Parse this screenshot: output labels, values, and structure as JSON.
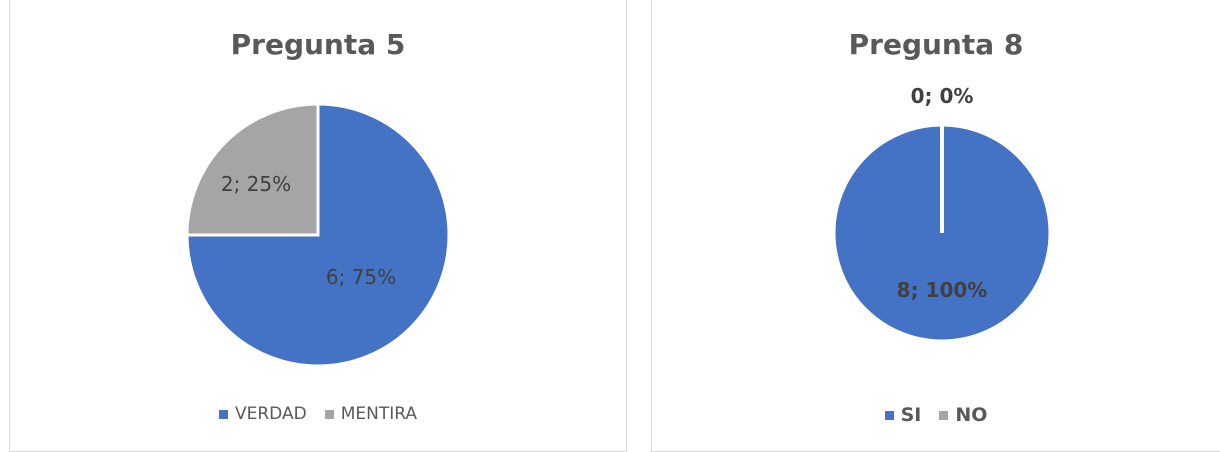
{
  "chart_data": [
    {
      "type": "pie",
      "title": "Pregunta 5",
      "series": [
        {
          "name": "VERDAD",
          "value": 6,
          "label": "6; 75%",
          "color": "#4472C4"
        },
        {
          "name": "MENTIRA",
          "value": 2,
          "label": "2; 25%",
          "color": "#A5A5A5"
        }
      ],
      "legend_position": "bottom",
      "label_style": "normal"
    },
    {
      "type": "pie",
      "title": "Pregunta 8",
      "series": [
        {
          "name": "SI",
          "value": 8,
          "label": "8; 100%",
          "color": "#4472C4"
        },
        {
          "name": "NO",
          "value": 0,
          "label": "0; 0%",
          "color": "#A5A5A5"
        }
      ],
      "legend_position": "bottom",
      "label_style": "bold"
    }
  ]
}
